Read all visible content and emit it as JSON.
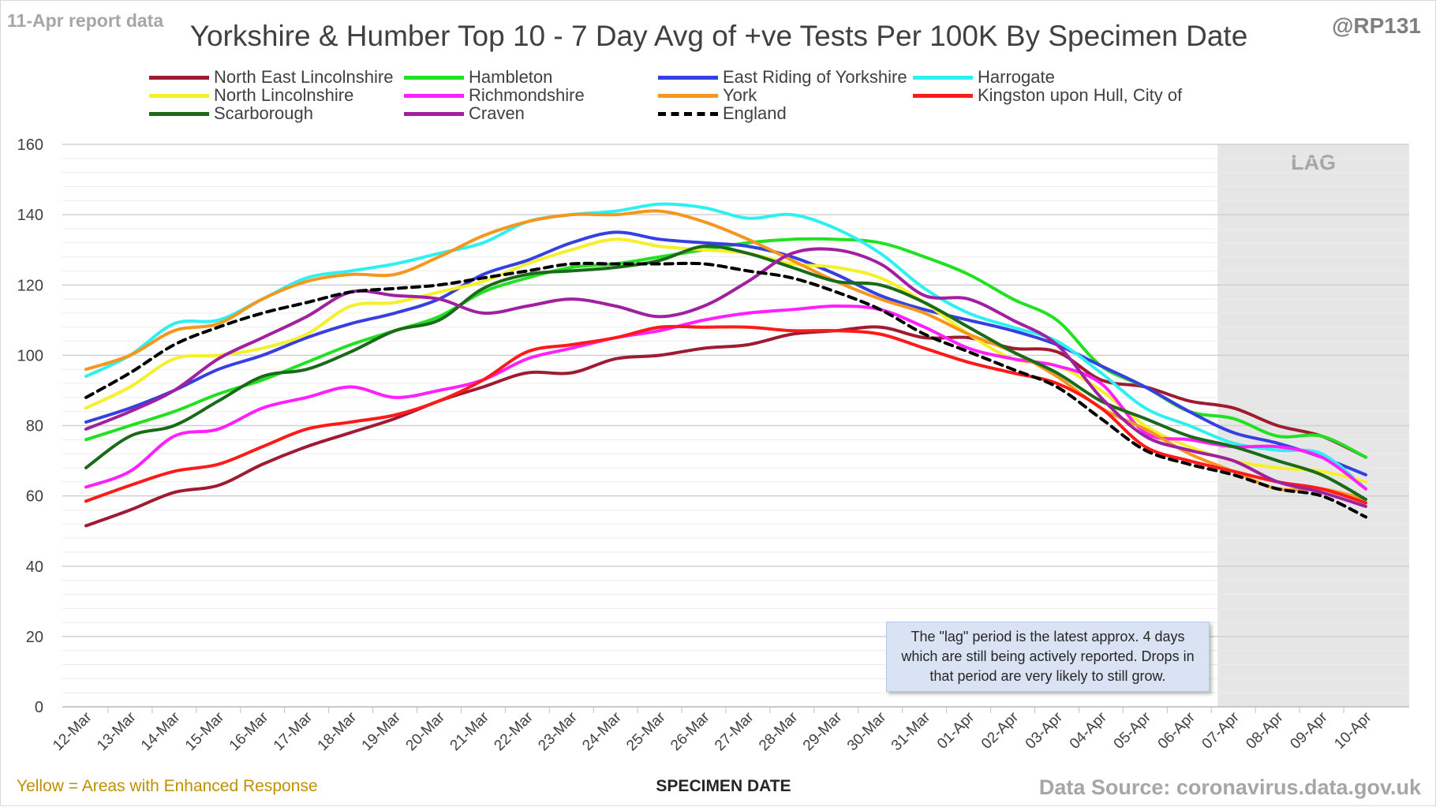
{
  "header": {
    "report_date": "11-Apr report data",
    "author": "@RP131",
    "title": "Yorkshire & Humber Top 10 - 7 Day Avg of +ve Tests Per 100K By Specimen Date"
  },
  "footer": {
    "note": "Yellow = Areas with Enhanced Response",
    "source": "Data Source: coronavirus.data.gov.uk"
  },
  "lag_box_text": "The \"lag\" period is the latest approx. 4 days which are still being actively reported. Drops in that period are very likely to still grow.",
  "chart_data": {
    "type": "line",
    "title": "Yorkshire & Humber Top 10 - 7 Day Avg of +ve Tests Per 100K By Specimen Date",
    "xlabel": "SPECIMEN DATE",
    "ylabel": "",
    "ylim": [
      0,
      160
    ],
    "yticks": [
      0,
      20,
      40,
      60,
      80,
      100,
      120,
      140,
      160
    ],
    "grid": true,
    "legend_position": "top",
    "lag_region": {
      "label": "LAG",
      "from": "07-Apr",
      "to": "10-Apr",
      "color": "#e7e6e6"
    },
    "categories": [
      "12-Mar",
      "13-Mar",
      "14-Mar",
      "15-Mar",
      "16-Mar",
      "17-Mar",
      "18-Mar",
      "19-Mar",
      "20-Mar",
      "21-Mar",
      "22-Mar",
      "23-Mar",
      "24-Mar",
      "25-Mar",
      "26-Mar",
      "27-Mar",
      "28-Mar",
      "29-Mar",
      "30-Mar",
      "31-Mar",
      "01-Apr",
      "02-Apr",
      "03-Apr",
      "04-Apr",
      "05-Apr",
      "06-Apr",
      "07-Apr",
      "08-Apr",
      "09-Apr",
      "10-Apr"
    ],
    "series": [
      {
        "name": "North East Lincolnshire",
        "color": "#9e1b32",
        "dash": false,
        "values": [
          51.5,
          56,
          61,
          63,
          69,
          74,
          78,
          82,
          87,
          91,
          95,
          95,
          99,
          100,
          102,
          103,
          106,
          107,
          108,
          105,
          105,
          102,
          101,
          93,
          91,
          87,
          85,
          80,
          77,
          71
        ]
      },
      {
        "name": "Hambleton",
        "color": "#22e022",
        "dash": false,
        "values": [
          76,
          80,
          84,
          89,
          93,
          98,
          103,
          107,
          111,
          118,
          122,
          125,
          126,
          128,
          130,
          132,
          133,
          133,
          132,
          128,
          123,
          116,
          110,
          97,
          91,
          84,
          82,
          77,
          77,
          71
        ]
      },
      {
        "name": "East Riding of Yorkshire",
        "color": "#3640e0",
        "dash": false,
        "values": [
          81,
          85,
          90,
          96,
          100,
          105,
          109,
          112,
          116,
          123,
          127,
          132,
          135,
          133,
          132,
          131,
          128,
          123,
          117,
          113,
          110,
          107,
          103,
          97,
          91,
          84,
          78,
          75,
          71,
          66
        ]
      },
      {
        "name": "Harrogate",
        "color": "#2ff0f0",
        "dash": false,
        "values": [
          94,
          100,
          109,
          110,
          116,
          122,
          124,
          126,
          129,
          132,
          138,
          140,
          141,
          143,
          142,
          139,
          140,
          136,
          129,
          119,
          112,
          108,
          104,
          95,
          85,
          80,
          75,
          73,
          72,
          62
        ]
      },
      {
        "name": "North Lincolnshire",
        "color": "#f5f02a",
        "dash": false,
        "values": [
          85,
          91,
          99,
          100,
          102,
          106,
          114,
          115,
          118,
          121,
          126,
          130,
          133,
          131,
          130,
          129,
          126,
          125,
          122,
          115,
          106,
          99,
          97,
          90,
          80,
          74,
          70,
          68,
          67,
          64
        ]
      },
      {
        "name": "Richmondshire",
        "color": "#ff1fff",
        "dash": false,
        "values": [
          62.5,
          67,
          77,
          79,
          85,
          88,
          91,
          88,
          90,
          93,
          99,
          102,
          105,
          107,
          110,
          112,
          113,
          114,
          113,
          108,
          102,
          99,
          97,
          92,
          78,
          76,
          74,
          74,
          71,
          62
        ]
      },
      {
        "name": "York",
        "color": "#f5961e",
        "dash": false,
        "values": [
          96,
          100,
          107,
          109,
          116,
          121,
          123,
          123,
          128,
          134,
          138,
          140,
          140,
          141,
          138,
          133,
          127,
          121,
          116,
          112,
          106,
          101,
          94,
          85,
          79,
          72,
          67,
          62,
          62,
          59
        ]
      },
      {
        "name": "Kingston upon Hull, City of",
        "color": "#ff1a1a",
        "dash": false,
        "values": [
          58.5,
          63,
          67,
          69,
          74,
          79,
          81,
          83,
          87,
          93,
          101,
          103,
          105,
          108,
          108,
          108,
          107,
          107,
          106,
          102,
          98,
          95,
          92,
          85,
          74,
          70,
          67,
          64,
          62,
          58
        ]
      },
      {
        "name": "Scarborough",
        "color": "#1a6a1a",
        "dash": false,
        "values": [
          68,
          77,
          80,
          87,
          94,
          96,
          101,
          107,
          110,
          119,
          123,
          124,
          125,
          127,
          131,
          129,
          125,
          121,
          120,
          115,
          108,
          101,
          95,
          87,
          82,
          77,
          74,
          70,
          66,
          59
        ]
      },
      {
        "name": "Craven",
        "color": "#a020a0",
        "dash": false,
        "values": [
          79,
          84,
          90,
          99,
          105,
          111,
          118,
          117,
          116,
          112,
          114,
          116,
          114,
          111,
          114,
          121,
          129,
          130,
          126,
          117,
          116,
          110,
          103,
          88,
          77,
          73,
          70,
          64,
          61,
          57
        ]
      },
      {
        "name": "England",
        "color": "#000000",
        "dash": true,
        "values": [
          88,
          95,
          103,
          108,
          112,
          115,
          118,
          119,
          120,
          122,
          124,
          126,
          126,
          126,
          126,
          124,
          122,
          118,
          113,
          106,
          101,
          96,
          91,
          82,
          73,
          69,
          66,
          62,
          60,
          54
        ]
      }
    ]
  }
}
